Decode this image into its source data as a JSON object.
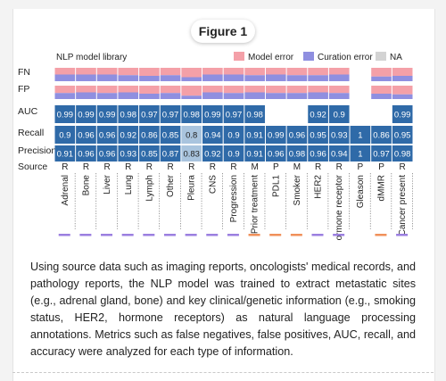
{
  "figure_label": "Figure 1",
  "caption": "Using source data such as imaging reports, oncologists' medical records, and pathology reports, the NLP model was trained to extract metastatic sites (e.g., adrenal gland, bone) and key clinical/genetic information (e.g., smoking status, HER2, hormone receptors) as natural language processing annotations. Metrics such as false negatives, false positives, AUC, recall, and accuracy were analyzed for each type of information.",
  "chart_data": {
    "type": "heatmap",
    "title": "NLP model library",
    "legend": [
      {
        "name": "Model error",
        "color": "#f4a0a8"
      },
      {
        "name": "Curation error",
        "color": "#8f8fe0"
      },
      {
        "name": "NA",
        "color": "#d3d3d3"
      }
    ],
    "legend_position": "top-right",
    "row_labels": [
      "FN",
      "FP",
      "AUC",
      "Recall",
      "Precision",
      "Source"
    ],
    "categories": [
      "Adrenal",
      "Bone",
      "Liver",
      "Lung",
      "Lymph",
      "Other",
      "Pleura",
      "CNS",
      "Progression",
      "Prior treatment",
      "PDL1",
      "Smoker",
      "HER2",
      "ormone receptor",
      "Gleason",
      "dMMR",
      "Cancer present"
    ],
    "source": [
      "R",
      "R",
      "R",
      "R",
      "R",
      "R",
      "R",
      "R",
      "R",
      "M",
      "P",
      "M",
      "R",
      "R",
      "P",
      "P",
      "R"
    ],
    "auc": [
      "0.99",
      "0.99",
      "0.99",
      "0.98",
      "0.97",
      "0.97",
      "0.98",
      "0.99",
      "0.97",
      "0.98",
      "",
      "",
      "0.92",
      "0.9",
      "",
      "",
      "0.99"
    ],
    "recall": [
      "0.9",
      "0.96",
      "0.96",
      "0.92",
      "0.86",
      "0.85",
      "0.8",
      "0.94",
      "0.9",
      "0.91",
      "0.99",
      "0.96",
      "0.95",
      "0.93",
      "1",
      "0.86",
      "0.95"
    ],
    "precision": [
      "0.91",
      "0.96",
      "0.96",
      "0.93",
      "0.85",
      "0.87",
      "0.83",
      "0.92",
      "0.9",
      "0.91",
      "0.96",
      "0.98",
      "0.96",
      "0.94",
      "1",
      "0.97",
      "0.98"
    ],
    "fn_model_error": [
      0.5,
      0.5,
      0.5,
      0.55,
      0.6,
      0.55,
      0.7,
      0.5,
      0.5,
      0.55,
      0.5,
      0.55,
      0.55,
      0.5,
      0,
      0.65,
      0.6
    ],
    "fp_model_error": [
      0.55,
      0.5,
      0.55,
      0.5,
      0.6,
      0.55,
      0.75,
      0.5,
      0.55,
      0.5,
      0.55,
      0.55,
      0.5,
      0.55,
      0,
      0.6,
      0.65
    ],
    "bottom_marks": [
      "#9b7fe0",
      "#9b7fe0",
      "#9b7fe0",
      "#9b7fe0",
      "#9b7fe0",
      "#9b7fe0",
      "#9b7fe0",
      "#9b7fe0",
      "#9b7fe0",
      "#f0905a",
      "#f0905a",
      "#f0905a",
      "#9b7fe0",
      "#9b7fe0",
      "",
      "#f0905a",
      "#9b7fe0"
    ]
  },
  "colors": {
    "cell_dark": "#2f6aa8",
    "cell_light": "#a9c4de",
    "model_error": "#f4a0a8",
    "curation_error": "#8f8fe0",
    "na": "#d3d3d3"
  }
}
